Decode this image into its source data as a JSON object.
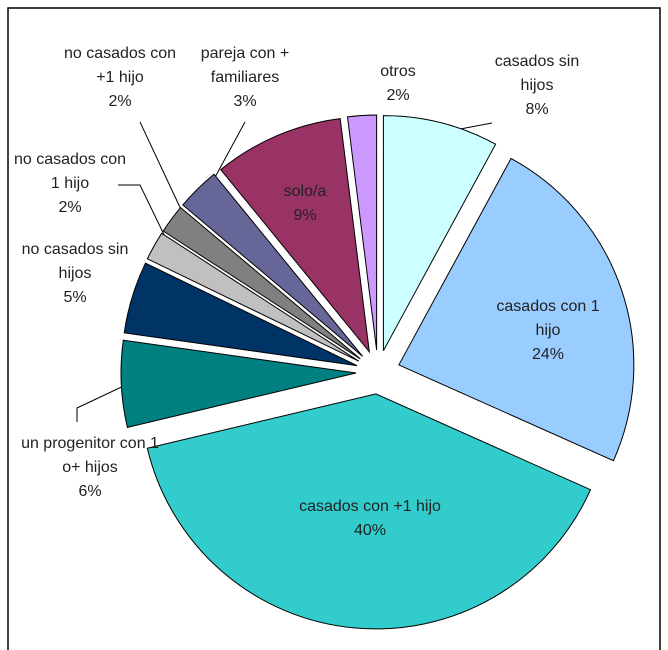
{
  "chart_data": {
    "type": "pie",
    "categories": [
      "casados sin hijos",
      "casados con 1 hijo",
      "casados con +1 hijo",
      "un progenitor con 1 o+ hijos",
      "no casados sin hijos",
      "no casados con 1 hijo",
      "no casados con +1 hijo",
      "pareja con + familiares",
      "solo/a",
      "otros"
    ],
    "values": [
      8,
      24,
      40,
      6,
      5,
      2,
      2,
      3,
      9,
      2
    ],
    "value_labels": [
      "8%",
      "24%",
      "40%",
      "6%",
      "5%",
      "2%",
      "2%",
      "3%",
      "9%",
      "2%"
    ],
    "colors": [
      "#ccffff",
      "#99ccff",
      "#33cccc",
      "#008080",
      "#003366",
      "#c0c0c0",
      "#808080",
      "#666699",
      "#993366",
      "#cc99ff"
    ]
  }
}
